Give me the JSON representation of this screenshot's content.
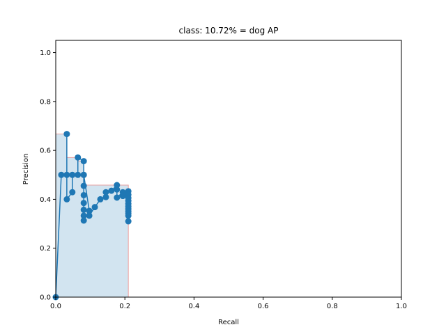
{
  "chart_data": {
    "type": "line",
    "title": "class: 10.72% = dog AP",
    "xlabel": "Recall",
    "ylabel": "Precision",
    "xlim": [
      0.0,
      1.0
    ],
    "ylim": [
      0.0,
      1.05
    ],
    "xticks": [
      0.0,
      0.2,
      0.4,
      0.6,
      0.8,
      1.0
    ],
    "yticks": [
      0.0,
      0.2,
      0.4,
      0.6,
      0.8,
      1.0
    ],
    "xtick_labels": [
      "0.0",
      "0.2",
      "0.4",
      "0.6",
      "0.8",
      "1.0"
    ],
    "ytick_labels": [
      "0.0",
      "0.2",
      "0.4",
      "0.6",
      "0.8",
      "1.0"
    ],
    "grid": false,
    "colors": {
      "line": "#1f77b4",
      "fill": "#1f77b4",
      "fill_edge": "#e8a0a0"
    },
    "series": [
      {
        "x": [
          0.0,
          0.016,
          0.032,
          0.032,
          0.032,
          0.048,
          0.048,
          0.064,
          0.064,
          0.081,
          0.081,
          0.081,
          0.081,
          0.081,
          0.081,
          0.081,
          0.081,
          0.081,
          0.097,
          0.097,
          0.113,
          0.129,
          0.145,
          0.145,
          0.161,
          0.177,
          0.177,
          0.177,
          0.194,
          0.194,
          0.194,
          0.21,
          0.21,
          0.21,
          0.21,
          0.21,
          0.21,
          0.21,
          0.21,
          0.21,
          0.21,
          0.21
        ],
        "y": [
          0.0,
          0.5,
          0.5,
          0.667,
          0.4,
          0.429,
          0.5,
          0.5,
          0.571,
          0.556,
          0.5,
          0.455,
          0.417,
          0.385,
          0.357,
          0.333,
          0.313,
          0.5,
          0.353,
          0.333,
          0.368,
          0.4,
          0.409,
          0.429,
          0.435,
          0.458,
          0.44,
          0.407,
          0.429,
          0.414,
          0.414,
          0.433,
          0.419,
          0.406,
          0.394,
          0.382,
          0.371,
          0.361,
          0.351,
          0.342,
          0.333,
          0.31
        ]
      }
    ],
    "interpolated_area": {
      "x": [
        0.0,
        0.0,
        0.032,
        0.032,
        0.064,
        0.064,
        0.081,
        0.081,
        0.21,
        0.21
      ],
      "y": [
        0.0,
        0.667,
        0.667,
        0.571,
        0.571,
        0.556,
        0.556,
        0.458,
        0.458,
        0.0
      ]
    }
  }
}
